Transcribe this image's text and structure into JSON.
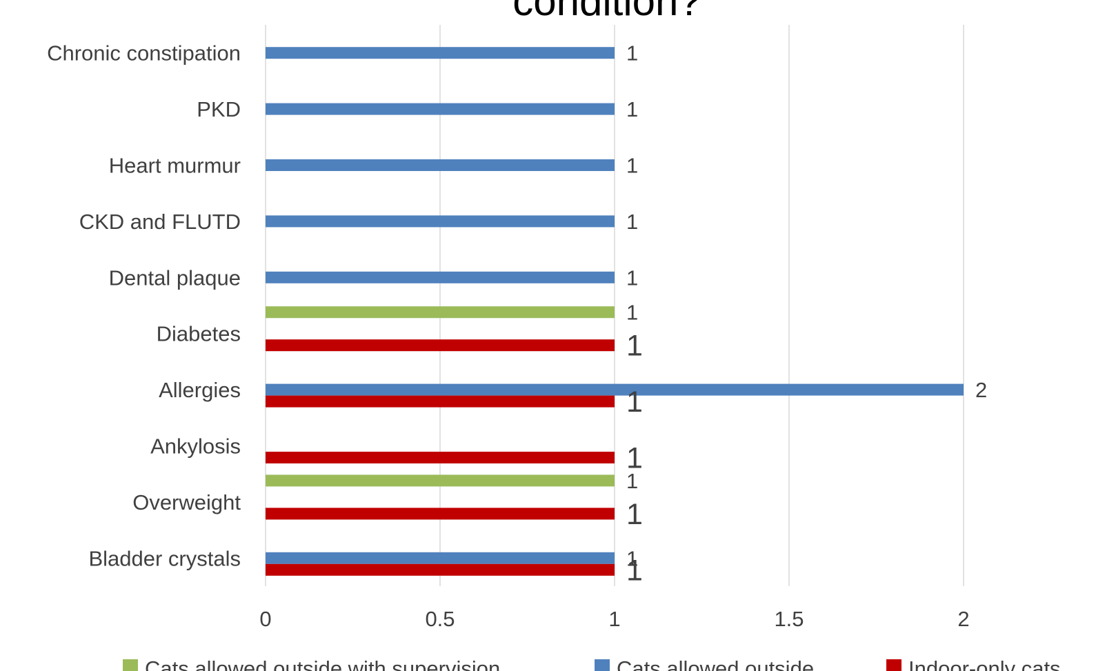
{
  "chart_data": {
    "type": "bar",
    "orientation": "horizontal",
    "title": "condition?",
    "categories": [
      "Bladder crystals",
      "Overweight",
      "Ankylosis",
      "Allergies",
      "Diabetes",
      "Dental plaque",
      "CKD and FLUTD",
      "Heart murmur",
      "PKD",
      "Chronic constipation"
    ],
    "series": [
      {
        "name": "Cats allowed outside with supervision",
        "color": "#9bbb59",
        "values": [
          null,
          1,
          null,
          null,
          1,
          null,
          null,
          null,
          null,
          null
        ]
      },
      {
        "name": "Cats allowed outside",
        "color": "#4f81bd",
        "values": [
          1,
          null,
          null,
          2,
          null,
          1,
          1,
          1,
          1,
          1
        ]
      },
      {
        "name": "Indoor-only cats",
        "color": "#c00000",
        "values": [
          1,
          1,
          1,
          1,
          1,
          null,
          null,
          null,
          null,
          null
        ]
      }
    ],
    "xlim": [
      0,
      2
    ],
    "xticks": [
      "0",
      "0.5",
      "1",
      "1.5",
      "2"
    ],
    "grid": true,
    "legend_position": "bottom"
  }
}
